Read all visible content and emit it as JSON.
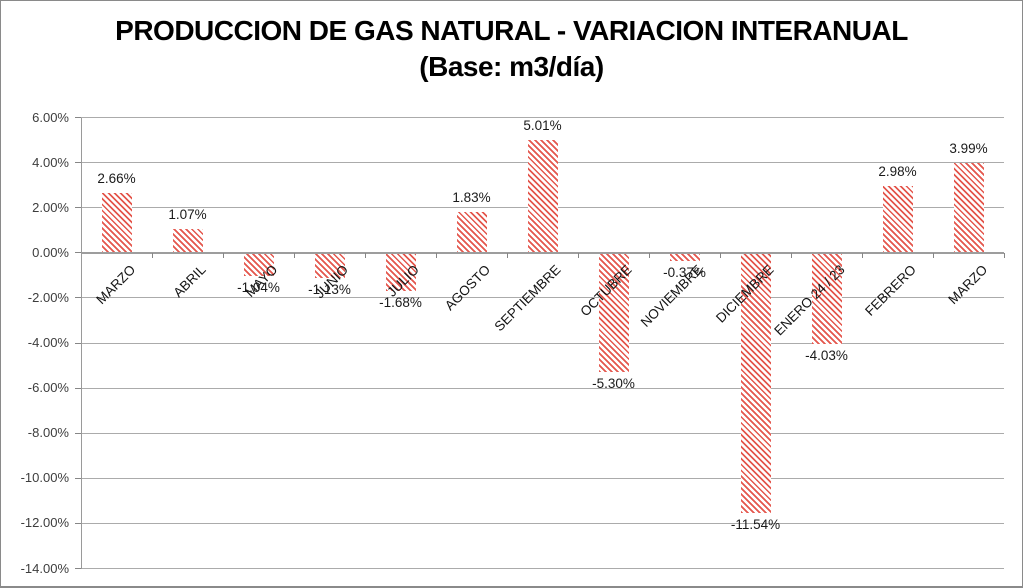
{
  "chart_data": {
    "type": "bar",
    "title": "PRODUCCION DE GAS NATURAL - VARIACION INTERANUAL",
    "subtitle": "(Base: m3/día)",
    "categories": [
      "MARZO",
      "ABRIL",
      "MAYO",
      "JUNIO",
      "JULIO",
      "AGOSTO",
      "SEPTIEMBRE",
      "OCTUBRE",
      "NOVIEMBRE",
      "DICIEMBRE",
      "ENERO 24 / 23",
      "FEBRERO",
      "MARZO"
    ],
    "values": [
      2.66,
      1.07,
      -1.04,
      -1.13,
      -1.68,
      1.83,
      5.01,
      -5.3,
      -0.37,
      -11.54,
      -4.03,
      2.98,
      3.99
    ],
    "data_labels": [
      "2.66%",
      "1.07%",
      "-1.04%",
      "-1.13%",
      "-1.68%",
      "1.83%",
      "5.01%",
      "-5.30%",
      "-0.37%",
      "-11.54%",
      "-4.03%",
      "2.98%",
      "3.99%"
    ],
    "ylim": [
      -14,
      6
    ],
    "ytick_values": [
      6,
      4,
      2,
      0,
      -2,
      -4,
      -6,
      -8,
      -10,
      -12,
      -14
    ],
    "ytick_labels": [
      "6.00%",
      "4.00%",
      "2.00%",
      "0.00%",
      "-2.00%",
      "-4.00%",
      "-6.00%",
      "-8.00%",
      "-10.00%",
      "-12.00%",
      "-14.00%"
    ],
    "grid": true,
    "legend": false,
    "bar_pattern": "diagonal-stripes",
    "bar_color": "#e4574d",
    "gridline_color": "#ababab",
    "axis_color": "#9a9a9a",
    "label_color": "#1a1a1a"
  }
}
